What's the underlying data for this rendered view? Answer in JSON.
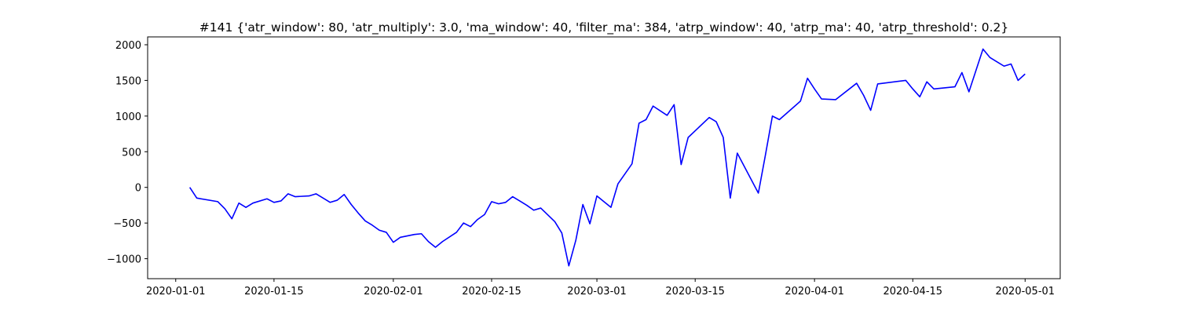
{
  "chart_data": {
    "type": "line",
    "title": "#141 {'atr_window': 80, 'atr_multiply': 3.0, 'ma_window': 40, 'filter_ma': 384, 'atrp_window': 40, 'atrp_ma': 40, 'atrp_threshold': 0.2}",
    "x": [
      "2020-01-03",
      "2020-01-04",
      "2020-01-07",
      "2020-01-08",
      "2020-01-09",
      "2020-01-10",
      "2020-01-11",
      "2020-01-12",
      "2020-01-14",
      "2020-01-15",
      "2020-01-16",
      "2020-01-17",
      "2020-01-18",
      "2020-01-20",
      "2020-01-21",
      "2020-01-23",
      "2020-01-24",
      "2020-01-25",
      "2020-01-26",
      "2020-01-27",
      "2020-01-28",
      "2020-01-29",
      "2020-01-30",
      "2020-01-31",
      "2020-02-01",
      "2020-02-02",
      "2020-02-04",
      "2020-02-05",
      "2020-02-06",
      "2020-02-07",
      "2020-02-08",
      "2020-02-10",
      "2020-02-11",
      "2020-02-12",
      "2020-02-13",
      "2020-02-14",
      "2020-02-15",
      "2020-02-16",
      "2020-02-17",
      "2020-02-18",
      "2020-02-19",
      "2020-02-20",
      "2020-02-21",
      "2020-02-22",
      "2020-02-24",
      "2020-02-25",
      "2020-02-26",
      "2020-02-27",
      "2020-02-28",
      "2020-02-29",
      "2020-03-01",
      "2020-03-03",
      "2020-03-04",
      "2020-03-06",
      "2020-03-07",
      "2020-03-08",
      "2020-03-09",
      "2020-03-11",
      "2020-03-12",
      "2020-03-13",
      "2020-03-14",
      "2020-03-17",
      "2020-03-18",
      "2020-03-19",
      "2020-03-20",
      "2020-03-21",
      "2020-03-24",
      "2020-03-25",
      "2020-03-26",
      "2020-03-27",
      "2020-03-30",
      "2020-03-31",
      "2020-04-01",
      "2020-04-02",
      "2020-04-04",
      "2020-04-07",
      "2020-04-08",
      "2020-04-09",
      "2020-04-10",
      "2020-04-14",
      "2020-04-15",
      "2020-04-16",
      "2020-04-17",
      "2020-04-18",
      "2020-04-21",
      "2020-04-22",
      "2020-04-23",
      "2020-04-24",
      "2020-04-25",
      "2020-04-26",
      "2020-04-28",
      "2020-04-29",
      "2020-04-30",
      "2020-05-01"
    ],
    "series": [
      {
        "color": "#0000ff",
        "values": [
          0,
          -150,
          -200,
          -300,
          -440,
          -220,
          -280,
          -220,
          -160,
          -210,
          -190,
          -90,
          -130,
          -120,
          -90,
          -210,
          -180,
          -100,
          -240,
          -360,
          -470,
          -530,
          -600,
          -630,
          -770,
          -700,
          -660,
          -650,
          -760,
          -840,
          -760,
          -630,
          -500,
          -550,
          -450,
          -380,
          -200,
          -230,
          -210,
          -130,
          -190,
          -250,
          -320,
          -290,
          -480,
          -640,
          -1100,
          -740,
          -240,
          -510,
          -120,
          -280,
          50,
          330,
          900,
          950,
          1140,
          1010,
          1160,
          320,
          700,
          980,
          920,
          700,
          -150,
          480,
          -80,
          450,
          1000,
          950,
          1210,
          1530,
          1380,
          1240,
          1230,
          1460,
          1290,
          1080,
          1450,
          1500,
          1380,
          1270,
          1480,
          1380,
          1410,
          1610,
          1340,
          1640,
          1940,
          1820,
          1700,
          1730,
          1500,
          1590
        ]
      }
    ],
    "xlim": [
      "2019-12-28",
      "2020-05-06"
    ],
    "xticks": [
      "2020-01-01",
      "2020-01-15",
      "2020-02-01",
      "2020-02-15",
      "2020-03-01",
      "2020-03-15",
      "2020-04-01",
      "2020-04-15",
      "2020-05-01"
    ],
    "ylim": [
      -1280,
      2110
    ],
    "yticks": [
      {
        "value": -1000,
        "label": "−1000"
      },
      {
        "value": -500,
        "label": "−500"
      },
      0,
      500,
      1000,
      1500,
      2000
    ]
  }
}
